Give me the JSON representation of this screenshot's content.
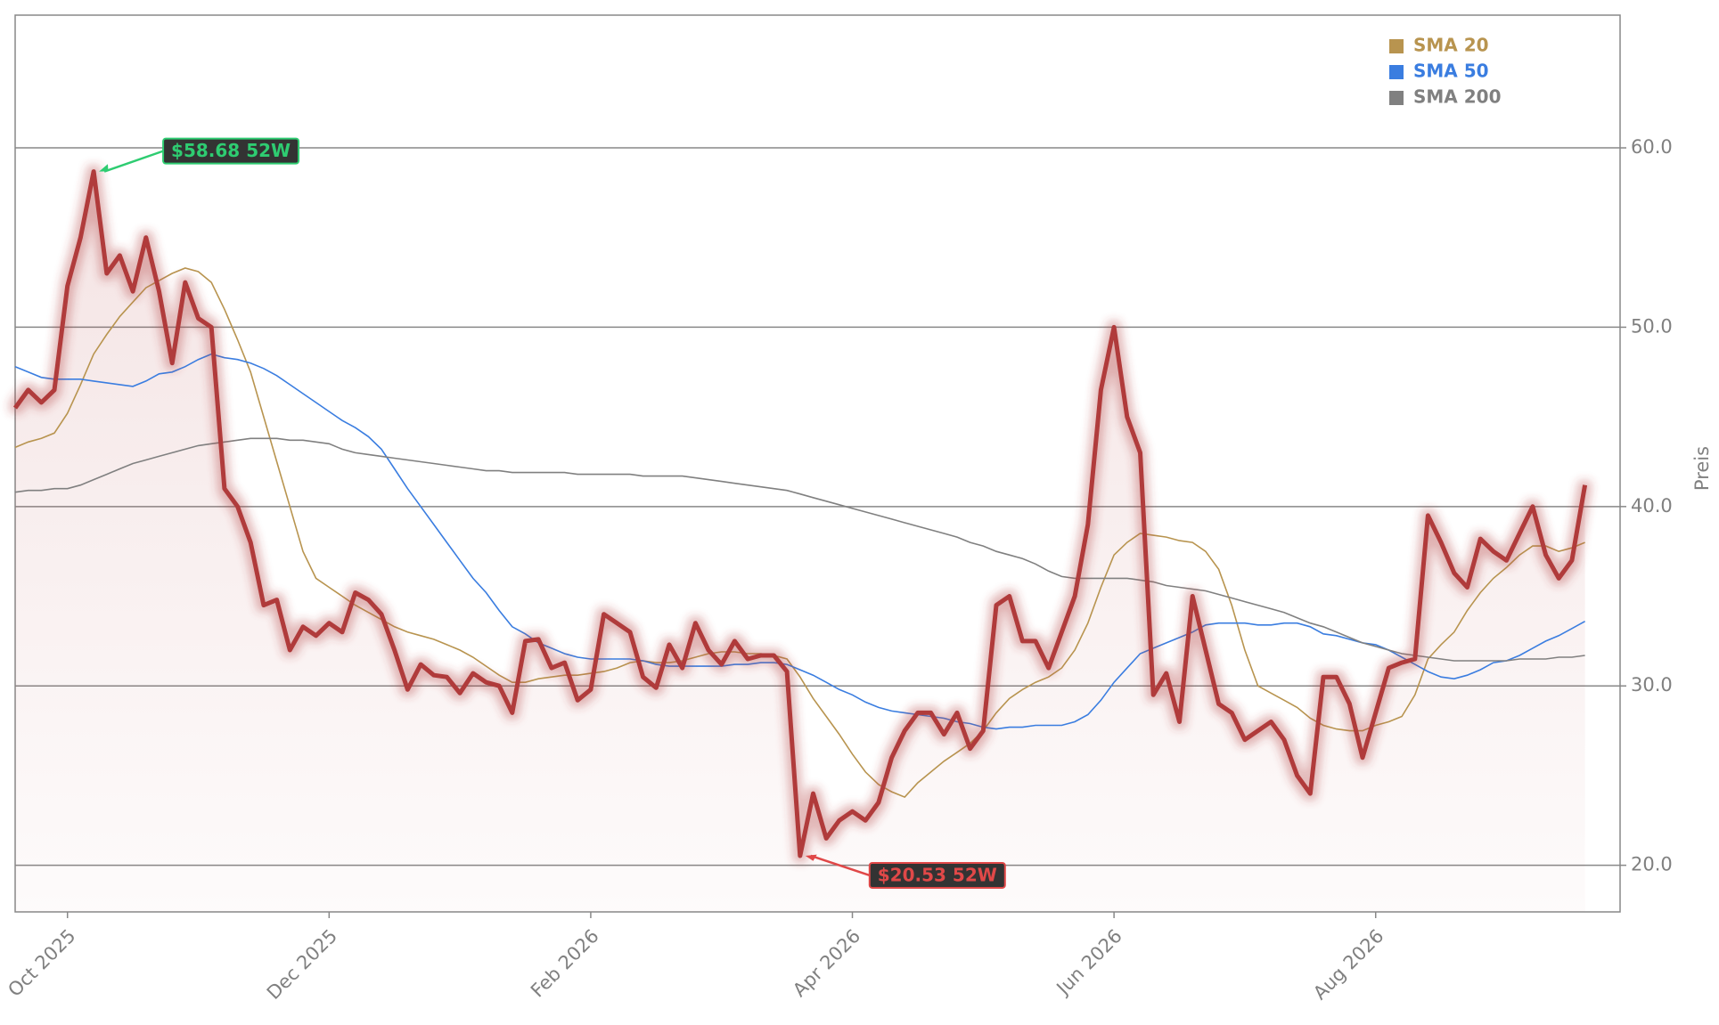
{
  "chart_data": {
    "type": "line",
    "y_label": "Preis",
    "categories": [
      null,
      null,
      null,
      null,
      "Oct 2025",
      null,
      null,
      null,
      null,
      null,
      null,
      null,
      null,
      null,
      null,
      null,
      null,
      null,
      null,
      null,
      null,
      null,
      null,
      null,
      "Dec 2025",
      null,
      null,
      null,
      null,
      null,
      null,
      null,
      null,
      null,
      null,
      null,
      null,
      null,
      null,
      null,
      null,
      null,
      null,
      null,
      "Feb 2026",
      null,
      null,
      null,
      null,
      null,
      null,
      null,
      null,
      null,
      null,
      null,
      null,
      null,
      null,
      null,
      null,
      null,
      null,
      null,
      "Apr 2026",
      null,
      null,
      null,
      null,
      null,
      null,
      null,
      null,
      null,
      null,
      null,
      null,
      null,
      null,
      null,
      null,
      null,
      null,
      null,
      "Jun 2026",
      null,
      null,
      null,
      null,
      null,
      null,
      null,
      null,
      null,
      null,
      null,
      null,
      null,
      null,
      null,
      null,
      null,
      null,
      null,
      "Aug 2026",
      null,
      null,
      null,
      null,
      null,
      null,
      null,
      null,
      null,
      null,
      null,
      null,
      null,
      null,
      null,
      null
    ],
    "values": [
      45.5,
      46.5,
      45.8,
      46.5,
      52.3,
      55,
      58.68,
      53,
      54,
      52,
      55,
      52,
      48,
      52.5,
      50.5,
      50,
      41,
      40,
      38,
      34.5,
      34.8,
      32,
      33.3,
      32.8,
      33.5,
      33,
      35.2,
      34.8,
      34,
      32,
      29.8,
      31.2,
      30.6,
      30.5,
      29.6,
      30.7,
      30.2,
      30,
      28.5,
      32.5,
      32.6,
      31,
      31.3,
      29.2,
      29.8,
      34,
      33.5,
      33,
      30.5,
      29.9,
      32.3,
      31,
      33.5,
      32,
      31.2,
      32.5,
      31.5,
      31.7,
      31.7,
      30.8,
      20.53,
      24,
      21.5,
      22.5,
      23,
      22.5,
      23.5,
      26,
      27.5,
      28.5,
      28.5,
      27.3,
      28.5,
      26.5,
      27.5,
      34.5,
      35,
      32.5,
      32.5,
      31,
      33,
      35,
      39,
      46.5,
      50,
      45,
      43,
      29.5,
      30.7,
      28,
      35,
      32,
      29,
      28.5,
      27,
      27.5,
      28,
      27,
      25,
      24,
      30.5,
      30.5,
      29,
      26,
      28.5,
      31,
      31.3,
      31.5,
      39.5,
      38,
      36.3,
      35.5,
      38.2,
      37.5,
      37,
      38.5,
      40,
      37.3,
      36,
      37,
      41.2
    ],
    "color": "#b03a3a",
    "series": [
      {
        "name": "SMA 20",
        "color": "#b8944f",
        "values": [
          43.3,
          43.6,
          43.8,
          44.1,
          45.2,
          46.8,
          48.5,
          49.6,
          50.6,
          51.4,
          52.2,
          52.6,
          53,
          53.3,
          53.1,
          52.5,
          51,
          49.3,
          47.5,
          45,
          42.5,
          40,
          37.5,
          36,
          35.5,
          35,
          34.5,
          34.1,
          33.7,
          33.3,
          33,
          32.8,
          32.6,
          32.3,
          32,
          31.6,
          31.1,
          30.6,
          30.2,
          30.2,
          30.4,
          30.5,
          30.6,
          30.6,
          30.7,
          30.8,
          31,
          31.3,
          31.4,
          31.3,
          31.3,
          31.4,
          31.6,
          31.8,
          31.9,
          31.9,
          31.8,
          31.8,
          31.7,
          31.5,
          30.5,
          29.3,
          28.3,
          27.3,
          26.2,
          25.2,
          24.5,
          24.1,
          23.8,
          24.6,
          25.2,
          25.8,
          26.3,
          26.8,
          27.5,
          28.5,
          29.3,
          29.8,
          30.2,
          30.5,
          31,
          32,
          33.5,
          35.5,
          37.3,
          38,
          38.5,
          38.4,
          38.3,
          38.1,
          38,
          37.5,
          36.5,
          34.5,
          32,
          30,
          29.6,
          29.2,
          28.8,
          28.2,
          27.8,
          27.6,
          27.5,
          27.5,
          27.8,
          28,
          28.3,
          29.5,
          31.5,
          32.3,
          33,
          34.2,
          35.2,
          36,
          36.6,
          37.3,
          37.8,
          37.8,
          37.5,
          37.7,
          38
        ]
      },
      {
        "name": "SMA 50",
        "color": "#3a7de0",
        "values": [
          47.8,
          47.5,
          47.2,
          47.1,
          47.1,
          47.1,
          47,
          46.9,
          46.8,
          46.7,
          47,
          47.4,
          47.5,
          47.8,
          48.2,
          48.5,
          48.3,
          48.2,
          48,
          47.7,
          47.3,
          46.8,
          46.3,
          45.8,
          45.3,
          44.8,
          44.4,
          43.9,
          43.2,
          42.1,
          41,
          40,
          39,
          38,
          37,
          36,
          35.2,
          34.2,
          33.3,
          32.9,
          32.4,
          32.1,
          31.8,
          31.6,
          31.5,
          31.5,
          31.5,
          31.5,
          31.4,
          31.2,
          31.1,
          31.1,
          31.1,
          31.1,
          31.1,
          31.2,
          31.2,
          31.3,
          31.3,
          31.2,
          30.9,
          30.6,
          30.2,
          29.8,
          29.5,
          29.1,
          28.8,
          28.6,
          28.5,
          28.4,
          28.3,
          28.2,
          28,
          27.9,
          27.7,
          27.6,
          27.7,
          27.7,
          27.8,
          27.8,
          27.8,
          28,
          28.4,
          29.2,
          30.2,
          31,
          31.8,
          32.1,
          32.4,
          32.7,
          33,
          33.4,
          33.5,
          33.5,
          33.5,
          33.4,
          33.4,
          33.5,
          33.5,
          33.3,
          32.9,
          32.8,
          32.6,
          32.4,
          32.3,
          32,
          31.6,
          31.2,
          30.8,
          30.5,
          30.4,
          30.6,
          30.9,
          31.3,
          31.4,
          31.7,
          32.1,
          32.5,
          32.8,
          33.2,
          33.6
        ]
      },
      {
        "name": "SMA 200",
        "color": "#808080",
        "values": [
          40.8,
          40.9,
          40.9,
          41,
          41,
          41.2,
          41.5,
          41.8,
          42.1,
          42.4,
          42.6,
          42.8,
          43,
          43.2,
          43.4,
          43.5,
          43.6,
          43.7,
          43.8,
          43.8,
          43.8,
          43.7,
          43.7,
          43.6,
          43.5,
          43.2,
          43,
          42.9,
          42.8,
          42.7,
          42.6,
          42.5,
          42.4,
          42.3,
          42.2,
          42.1,
          42,
          42,
          41.9,
          41.9,
          41.9,
          41.9,
          41.9,
          41.8,
          41.8,
          41.8,
          41.8,
          41.8,
          41.7,
          41.7,
          41.7,
          41.7,
          41.6,
          41.5,
          41.4,
          41.3,
          41.2,
          41.1,
          41,
          40.9,
          40.7,
          40.5,
          40.3,
          40.1,
          39.9,
          39.7,
          39.5,
          39.3,
          39.1,
          38.9,
          38.7,
          38.5,
          38.3,
          38,
          37.8,
          37.5,
          37.3,
          37.1,
          36.8,
          36.4,
          36.1,
          36,
          36,
          36,
          36,
          36,
          35.9,
          35.8,
          35.6,
          35.5,
          35.4,
          35.3,
          35.1,
          34.9,
          34.7,
          34.5,
          34.3,
          34.1,
          33.8,
          33.5,
          33.3,
          33,
          32.7,
          32.4,
          32.2,
          32,
          31.8,
          31.7,
          31.6,
          31.5,
          31.4,
          31.4,
          31.4,
          31.4,
          31.4,
          31.5,
          31.5,
          31.5,
          31.6,
          31.6,
          31.7
        ]
      }
    ],
    "annotations": [
      {
        "text": "$58.68 52W",
        "color": "#2ecc71",
        "at": "max"
      },
      {
        "text": "$20.53 52W",
        "color": "#e04848",
        "at": "min"
      }
    ],
    "ylim": [
      17.4,
      67.4
    ],
    "yticks": [
      {
        "value": 20,
        "label": "20.0"
      },
      {
        "value": 30,
        "label": "30.0"
      },
      {
        "value": 40,
        "label": "40.0"
      },
      {
        "value": 50,
        "label": "50.0"
      },
      {
        "value": 60,
        "label": "60.0"
      }
    ],
    "grid": true,
    "legend": "upper right"
  }
}
